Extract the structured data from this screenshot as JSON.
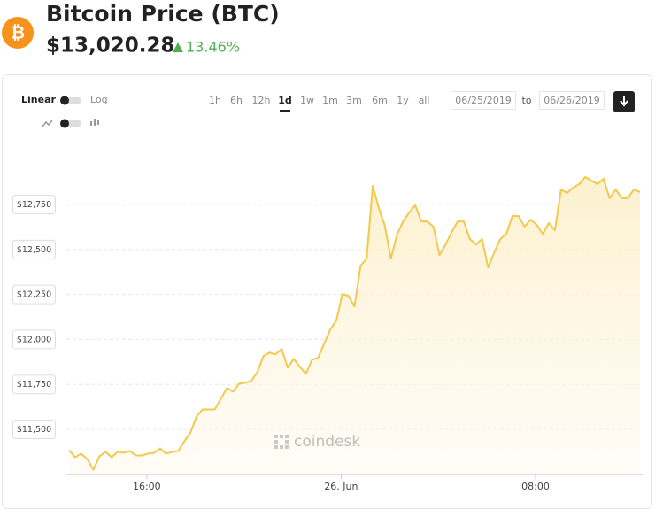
{
  "header": {
    "title": "Bitcoin Price (BTC)",
    "price": "$13,020.28",
    "change": "13.46%"
  },
  "controls": {
    "scale_linear": "Linear",
    "scale_log": "Log",
    "ranges": [
      "1h",
      "6h",
      "12h",
      "1d",
      "1w",
      "1m",
      "3m",
      "6m",
      "1y",
      "all"
    ],
    "active_range": "1d",
    "from": "06/25/2019",
    "to_label": "to",
    "to": "06/26/2019"
  },
  "watermark": "coindesk",
  "chart_data": {
    "type": "area",
    "color": "#f2c94c",
    "fill": "#fdf3d8",
    "x": [
      12.8,
      13.05,
      13.3,
      13.55,
      13.8,
      14.05,
      14.3,
      14.55,
      14.8,
      15.05,
      15.3,
      15.55,
      15.8,
      16.05,
      16.3,
      16.55,
      16.8,
      17.05,
      17.3,
      17.55,
      17.8,
      18.05,
      18.3,
      18.55,
      18.8,
      19.05,
      19.3,
      19.55,
      19.8,
      20.05,
      20.3,
      20.55,
      20.8,
      21.05,
      21.3,
      21.55,
      21.8,
      22.05,
      22.3,
      22.55,
      22.8,
      23.05,
      23.3,
      23.55,
      23.8,
      24.05,
      24.3,
      24.55,
      24.8,
      25.05,
      25.3,
      25.55,
      25.8,
      26.05,
      26.3,
      26.55,
      26.8,
      27.05,
      27.3,
      27.55,
      27.8,
      28.05,
      28.3,
      28.55,
      28.8,
      29.05,
      29.3,
      29.55,
      29.8,
      30.05,
      30.3,
      30.55,
      30.8,
      31.05,
      31.3,
      31.55,
      31.8,
      32.05,
      32.3,
      32.55,
      32.8,
      33.05,
      33.3,
      33.55,
      33.8,
      34.05,
      34.3,
      34.55,
      34.8,
      35.05,
      35.3,
      35.55,
      35.8,
      36.05,
      36.3
    ],
    "values": [
      11385,
      11345,
      11365,
      11335,
      11276,
      11350,
      11375,
      11345,
      11375,
      11370,
      11380,
      11355,
      11355,
      11365,
      11370,
      11394,
      11365,
      11375,
      11380,
      11434,
      11483,
      11572,
      11611,
      11611,
      11611,
      11670,
      11730,
      11710,
      11754,
      11759,
      11769,
      11818,
      11907,
      11927,
      11917,
      11947,
      11843,
      11892,
      11848,
      11809,
      11887,
      11897,
      11976,
      12055,
      12104,
      12252,
      12242,
      12183,
      12410,
      12449,
      12854,
      12730,
      12632,
      12449,
      12583,
      12656,
      12706,
      12745,
      12656,
      12656,
      12627,
      12469,
      12528,
      12597,
      12656,
      12656,
      12558,
      12528,
      12558,
      12400,
      12484,
      12558,
      12587,
      12686,
      12686,
      12627,
      12666,
      12637,
      12587,
      12647,
      12607,
      12834,
      12814,
      12844,
      12864,
      12903,
      12883,
      12864,
      12893,
      12785,
      12834,
      12785,
      12785,
      12834,
      12819
    ],
    "xlim": [
      12.8,
      36.3
    ],
    "xticks": [
      {
        "value": 16,
        "label": "16:00"
      },
      {
        "value": 24,
        "label": "26. Jun"
      },
      {
        "value": 32,
        "label": "08:00"
      }
    ],
    "ylim": [
      11254,
      13075
    ],
    "yticks": [
      {
        "value": 11500,
        "label": "$11,500"
      },
      {
        "value": 11750,
        "label": "$11,750"
      },
      {
        "value": 12000,
        "label": "$12,000"
      },
      {
        "value": 12250,
        "label": "$12,250"
      },
      {
        "value": 12500,
        "label": "$12,500"
      },
      {
        "value": 12750,
        "label": "$12,750"
      }
    ],
    "grid": true
  }
}
